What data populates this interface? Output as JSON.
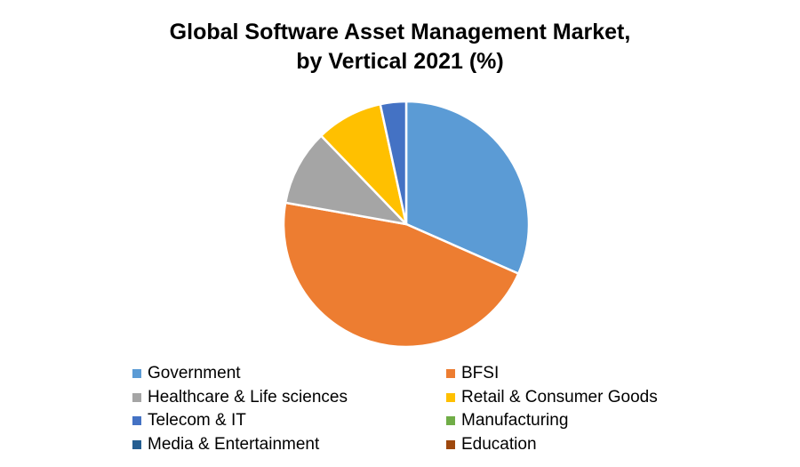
{
  "chart_data": {
    "type": "pie",
    "title_lines": [
      "Global Software Asset Management Market,",
      "by Vertical 2021 (%)"
    ],
    "slices": [
      {
        "label": "Government",
        "value": 31.6,
        "color": "#5B9BD5"
      },
      {
        "label": "BFSI",
        "value": 46.2,
        "color": "#ED7D31"
      },
      {
        "label": "Healthcare & Life sciences",
        "value": 10.0,
        "color": "#A5A5A5"
      },
      {
        "label": "Retail & Consumer Goods",
        "value": 8.8,
        "color": "#FFC000"
      },
      {
        "label": "Telecom & IT",
        "value": 3.4,
        "color": "#4472C4"
      },
      {
        "label": "Manufacturing",
        "value": 0,
        "color": "#70AD47"
      },
      {
        "label": "Media & Entertainment",
        "value": 0,
        "color": "#255E91"
      },
      {
        "label": "Education",
        "value": 0,
        "color": "#9E480E"
      }
    ],
    "legend_position": "bottom"
  }
}
